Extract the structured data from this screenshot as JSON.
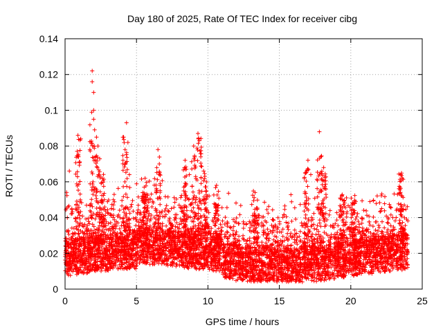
{
  "chart_data": {
    "type": "scatter",
    "title": "Day 180 of 2025, Rate Of TEC Index for receiver cibg",
    "xlabel": "GPS time / hours",
    "ylabel": "ROTI / TECUs",
    "xlim": [
      0,
      25
    ],
    "ylim": [
      0,
      0.14
    ],
    "xticks": [
      0,
      5,
      10,
      15,
      20,
      25
    ],
    "yticks": [
      0,
      0.02,
      0.04,
      0.06,
      0.08,
      0.1,
      0.12,
      0.14
    ],
    "xtick_labels": [
      "0",
      "5",
      "10",
      "15",
      "20",
      "25"
    ],
    "ytick_labels": [
      "0",
      "0.02",
      "0.04",
      "0.06",
      "0.08",
      "0.1",
      "0.12",
      "0.14"
    ],
    "grid": true,
    "marker": "+",
    "color": "#ff0000",
    "series": [
      {
        "name": "ROTI",
        "description_points": [
          [
            0.2,
            0.046
          ],
          [
            0.3,
            0.066
          ],
          [
            0.9,
            0.086
          ],
          [
            0.9,
            0.074
          ],
          [
            1.1,
            0.084
          ],
          [
            1.9,
            0.122
          ],
          [
            1.9,
            0.116
          ],
          [
            2.0,
            0.11
          ],
          [
            2.0,
            0.1
          ],
          [
            2.0,
            0.095
          ],
          [
            2.2,
            0.085
          ],
          [
            2.3,
            0.08
          ],
          [
            2.6,
            0.062
          ],
          [
            4.1,
            0.085
          ],
          [
            4.2,
            0.078
          ],
          [
            4.2,
            0.07
          ],
          [
            4.3,
            0.093
          ],
          [
            4.4,
            0.082
          ],
          [
            4.5,
            0.064
          ],
          [
            5.6,
            0.062
          ],
          [
            6.5,
            0.078
          ],
          [
            6.6,
            0.07
          ],
          [
            8.4,
            0.072
          ],
          [
            8.7,
            0.064
          ],
          [
            9.0,
            0.08
          ],
          [
            9.3,
            0.087
          ],
          [
            9.4,
            0.083
          ],
          [
            9.5,
            0.074
          ],
          [
            9.7,
            0.066
          ],
          [
            9.9,
            0.06
          ],
          [
            10.6,
            0.058
          ],
          [
            13.3,
            0.054
          ],
          [
            16.8,
            0.065
          ],
          [
            17.0,
            0.072
          ],
          [
            17.2,
            0.064
          ],
          [
            17.8,
            0.088
          ],
          [
            17.9,
            0.074
          ],
          [
            18.1,
            0.068
          ],
          [
            19.4,
            0.05
          ],
          [
            20.2,
            0.048
          ],
          [
            23.5,
            0.064
          ],
          [
            23.6,
            0.062
          ],
          [
            23.2,
            0.044
          ]
        ]
      }
    ]
  }
}
